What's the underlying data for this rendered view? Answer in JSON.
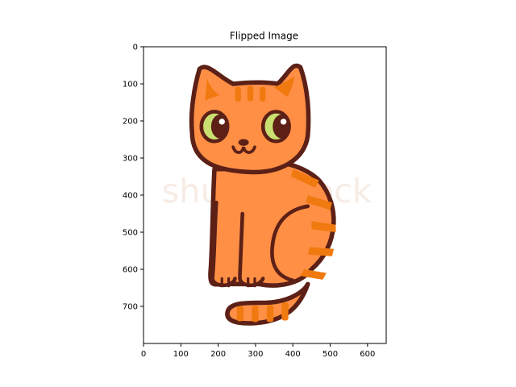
{
  "chart_data": {
    "type": "image",
    "title": "Flipped Image",
    "xlabel": "",
    "ylabel": "",
    "xlim": [
      0,
      650
    ],
    "ylim": [
      800,
      0
    ],
    "xticks": [
      0,
      100,
      200,
      300,
      400,
      500,
      600
    ],
    "yticks": [
      0,
      100,
      200,
      300,
      400,
      500,
      600,
      700
    ],
    "grid": false,
    "image_content": "cartoon-orange-tabby-cat",
    "watermark": "shutterstock",
    "colors": {
      "fur": "#ff8f45",
      "stripes": "#f07a10",
      "outline": "#5c2016",
      "eyes": "#c9e070"
    }
  }
}
